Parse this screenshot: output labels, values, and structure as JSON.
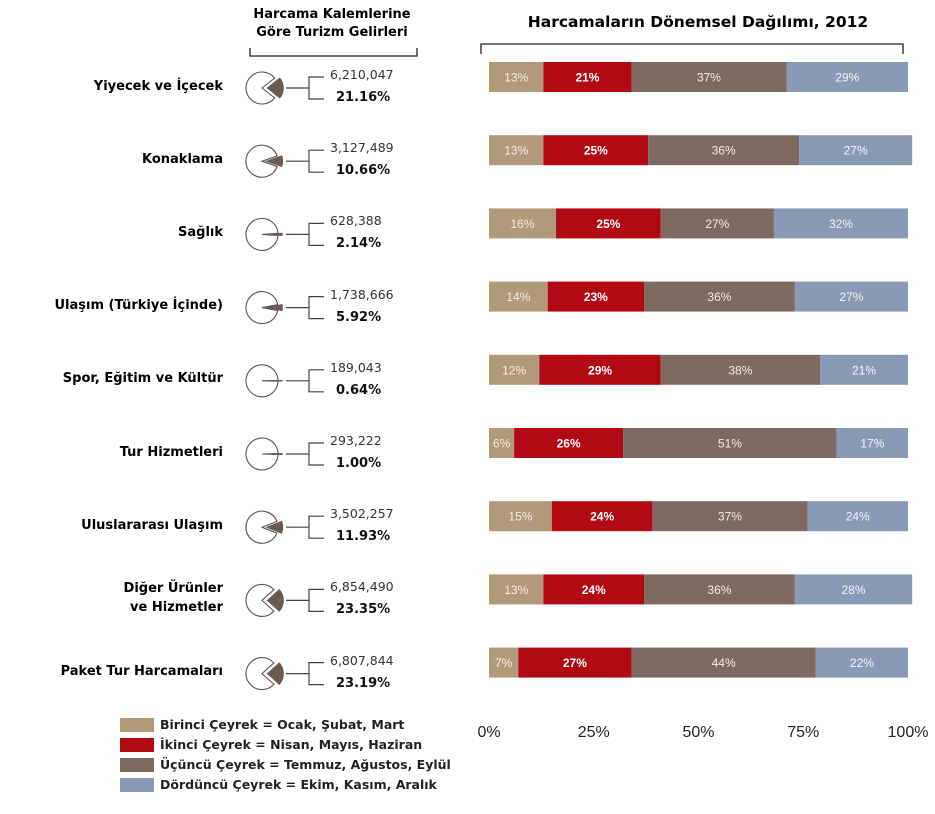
{
  "left_header": [
    "Harcama Kalemlerine",
    "Göre Turizm Gelirleri"
  ],
  "colors": {
    "q1": "#b09a7a",
    "q2": "#b20a12",
    "q3": "#7e6a60",
    "q4": "#8b9ab4"
  },
  "legend": [
    {
      "label": "Birinci Çeyrek = Ocak, Şubat, Mart",
      "color": "#b09a7a"
    },
    {
      "label": "İkinci Çeyrek = Nisan, Mayıs, Haziran",
      "color": "#b20a12"
    },
    {
      "label": "Üçüncü Çeyrek = Temmuz, Ağustos, Eylül",
      "color": "#7e6a60"
    },
    {
      "label": "Dördüncü Çeyrek = Ekim, Kasım, Aralık",
      "color": "#8b9ab4"
    }
  ],
  "rows": [
    {
      "label": [
        "Yiyecek ve İçecek"
      ],
      "amount": "6,210,047",
      "share": "21.16%"
    },
    {
      "label": [
        "Konaklama"
      ],
      "amount": "3,127,489",
      "share": "10.66%"
    },
    {
      "label": [
        "Sağlık"
      ],
      "amount": "628,388",
      "share": "2.14%"
    },
    {
      "label": [
        "Ulaşım (Türkiye İçinde)"
      ],
      "amount": "1,738,666",
      "share": "5.92%"
    },
    {
      "label": [
        "Spor, Eğitim ve Kültür"
      ],
      "amount": "189,043",
      "share": "0.64%"
    },
    {
      "label": [
        "Tur Hizmetleri"
      ],
      "amount": "293,222",
      "share": "1.00%"
    },
    {
      "label": [
        "Uluslararası Ulaşım"
      ],
      "amount": "3,502,257",
      "share": "11.93%"
    },
    {
      "label": [
        "Diğer Ürünler",
        "ve Hizmetler"
      ],
      "amount": "6,854,490",
      "share": "23.35%"
    },
    {
      "label": [
        "Paket Tur Harcamaları"
      ],
      "amount": "6,807,844",
      "share": "23.19%"
    }
  ],
  "chart_data": {
    "type": "bar",
    "orientation": "horizontal",
    "stacked": true,
    "normalized": true,
    "title": "Harcamaların Dönemsel Dağılımı, 2012",
    "categories": [
      "Yiyecek ve İçecek",
      "Konaklama",
      "Sağlık",
      "Ulaşım (Türkiye İçinde)",
      "Spor, Eğitim ve Kültür",
      "Tur Hizmetleri",
      "Uluslararası Ulaşım",
      "Diğer Ürünler ve Hizmetler",
      "Paket Tur Harcamaları"
    ],
    "series": [
      {
        "name": "Birinci Çeyrek = Ocak, Şubat, Mart",
        "values": [
          13,
          13,
          16,
          14,
          12,
          6,
          15,
          13,
          7
        ]
      },
      {
        "name": "İkinci Çeyrek = Nisan, Mayıs, Haziran",
        "values": [
          21,
          25,
          25,
          23,
          29,
          26,
          24,
          24,
          27
        ]
      },
      {
        "name": "Üçüncü Çeyrek = Temmuz, Ağustos, Eylül",
        "values": [
          37,
          36,
          27,
          36,
          38,
          51,
          37,
          36,
          44
        ]
      },
      {
        "name": "Dördüncü Çeyrek = Ekim, Kasım, Aralık",
        "values": [
          29,
          27,
          32,
          27,
          21,
          17,
          24,
          28,
          22
        ]
      }
    ],
    "xlim": [
      0,
      100
    ],
    "xticks": [
      "0%",
      "25%",
      "50%",
      "75%",
      "100%"
    ],
    "legend_position": "bottom-left",
    "side_pies": {
      "series_name": "Harcama Kalemlerine Göre Turizm Gelirleri",
      "shares_percent": [
        21.16,
        10.66,
        2.14,
        5.92,
        0.64,
        1.0,
        11.93,
        23.35,
        23.19
      ]
    }
  }
}
